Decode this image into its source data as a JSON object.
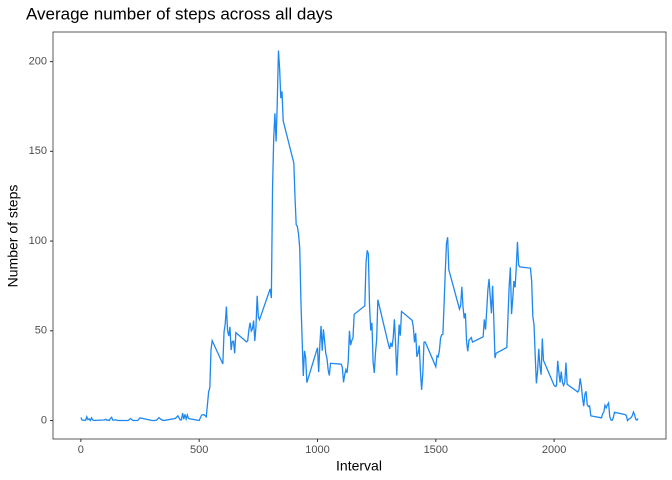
{
  "chart_data": {
    "type": "line",
    "title": "Average number of steps across all days",
    "x_label": "Interval",
    "y_label": "Number of steps",
    "color": "#1e88f0",
    "x": [
      0,
      5,
      10,
      15,
      20,
      25,
      30,
      35,
      40,
      45,
      50,
      55,
      100,
      105,
      110,
      115,
      120,
      125,
      130,
      135,
      140,
      145,
      150,
      155,
      200,
      210,
      220,
      230,
      240,
      250,
      300,
      310,
      320,
      330,
      340,
      350,
      400,
      410,
      420,
      425,
      430,
      435,
      440,
      445,
      450,
      455,
      500,
      510,
      520,
      530,
      540,
      545,
      550,
      555,
      600,
      605,
      610,
      615,
      620,
      625,
      630,
      635,
      640,
      645,
      650,
      655,
      700,
      705,
      710,
      715,
      720,
      725,
      730,
      735,
      740,
      745,
      750,
      755,
      800,
      805,
      810,
      815,
      820,
      825,
      830,
      835,
      840,
      845,
      850,
      855,
      900,
      905,
      910,
      915,
      920,
      925,
      930,
      935,
      940,
      945,
      950,
      955,
      1000,
      1005,
      1010,
      1015,
      1020,
      1025,
      1030,
      1035,
      1040,
      1045,
      1050,
      1055,
      1100,
      1105,
      1110,
      1115,
      1120,
      1125,
      1130,
      1135,
      1140,
      1145,
      1150,
      1155,
      1200,
      1205,
      1210,
      1215,
      1220,
      1225,
      1230,
      1235,
      1240,
      1245,
      1250,
      1255,
      1300,
      1305,
      1310,
      1315,
      1320,
      1325,
      1330,
      1335,
      1340,
      1345,
      1350,
      1355,
      1400,
      1405,
      1410,
      1415,
      1420,
      1425,
      1430,
      1435,
      1440,
      1445,
      1450,
      1455,
      1500,
      1505,
      1510,
      1515,
      1520,
      1525,
      1530,
      1535,
      1540,
      1545,
      1550,
      1555,
      1600,
      1605,
      1610,
      1615,
      1620,
      1625,
      1630,
      1635,
      1640,
      1645,
      1650,
      1655,
      1700,
      1705,
      1710,
      1715,
      1720,
      1725,
      1730,
      1735,
      1740,
      1745,
      1750,
      1755,
      1800,
      1805,
      1810,
      1815,
      1820,
      1825,
      1830,
      1835,
      1840,
      1845,
      1850,
      1855,
      1900,
      1905,
      1910,
      1915,
      1920,
      1925,
      1930,
      1935,
      1940,
      1945,
      1950,
      1955,
      2000,
      2005,
      2010,
      2015,
      2020,
      2025,
      2030,
      2035,
      2040,
      2045,
      2050,
      2055,
      2100,
      2105,
      2110,
      2115,
      2120,
      2125,
      2130,
      2135,
      2140,
      2145,
      2150,
      2155,
      2200,
      2205,
      2210,
      2215,
      2220,
      2225,
      2230,
      2235,
      2240,
      2245,
      2250,
      2255,
      2300,
      2305,
      2310,
      2315,
      2320,
      2325,
      2330,
      2335,
      2340,
      2345,
      2350,
      2355
    ],
    "values": [
      1.7,
      0.3,
      0.1,
      0.2,
      0.1,
      2.1,
      0.5,
      0.9,
      0,
      1.5,
      0.3,
      0.1,
      0.3,
      0.7,
      0.2,
      0.3,
      0,
      1.1,
      1.8,
      0.2,
      0.2,
      0.4,
      0.3,
      0,
      0,
      1.1,
      0,
      0,
      0,
      1.5,
      0,
      0,
      0.2,
      1.6,
      0.5,
      0,
      1.2,
      2.6,
      0.3,
      0.4,
      4.1,
      0.7,
      3.5,
      0.8,
      3.1,
      1.1,
      0,
      3,
      3.3,
      2.1,
      16,
      18.3,
      39.5,
      44.5,
      31.5,
      49.3,
      53.8,
      63.5,
      50,
      47.1,
      52.2,
      39.3,
      44,
      44.2,
      37.4,
      49,
      43.8,
      44.4,
      50.5,
      54.5,
      49.9,
      51,
      55.7,
      44.3,
      52.3,
      69.5,
      57.8,
      56.2,
      73.4,
      68.2,
      129.4,
      157.5,
      171.2,
      155.4,
      177.3,
      206.2,
      195.9,
      179.6,
      183.4,
      167,
      143.5,
      124,
      109.1,
      108.1,
      103.7,
      95.9,
      66.2,
      45.2,
      24.8,
      38.8,
      35,
      21.1,
      40.6,
      27,
      42.4,
      52.7,
      38.9,
      50.8,
      44.3,
      37.4,
      34.7,
      28.3,
      25.1,
      31.9,
      31.4,
      29.7,
      21.3,
      25.5,
      28.4,
      26.5,
      33.4,
      50,
      42,
      44.6,
      46,
      59.2,
      63.9,
      87.7,
      94.8,
      92.8,
      63.4,
      50.2,
      54.5,
      32.4,
      26.5,
      37.7,
      45.1,
      67.3,
      42.3,
      39.9,
      43.3,
      41,
      46.2,
      56.4,
      42.8,
      25.1,
      40,
      53.5,
      47.3,
      60.8,
      55.8,
      52,
      43.6,
      48.7,
      35.5,
      37.5,
      41.8,
      27.5,
      17.1,
      26.1,
      43.6,
      43.8,
      30,
      36.1,
      35.5,
      38.8,
      46,
      47.8,
      48.1,
      65.3,
      82.9,
      98.7,
      102.1,
      84,
      62.1,
      64.1,
      74.5,
      63.2,
      56.9,
      59.8,
      43.9,
      38.6,
      44.7,
      45.5,
      46.2,
      43.7,
      46.6,
      56.3,
      50.7,
      61.2,
      72.7,
      78.9,
      68.9,
      59.7,
      75.1,
      56.5,
      34.8,
      37.5,
      40.7,
      58,
      74.7,
      85.3,
      59.3,
      67.8,
      77.7,
      74.2,
      85.3,
      99.5,
      86.6,
      85.6,
      84.9,
      77.8,
      58,
      53.4,
      36.3,
      20.7,
      27.4,
      40,
      30.2,
      25.5,
      45.7,
      33.5,
      19.6,
      19,
      19.3,
      33.3,
      26.8,
      21.2,
      27.3,
      21.3,
      19.5,
      21.3,
      32.3,
      20.2,
      15.9,
      17.2,
      23.5,
      19.2,
      12.5,
      8,
      14.7,
      16.3,
      8.7,
      7.8,
      8.1,
      2.6,
      1.5,
      3.7,
      4.8,
      8.5,
      7.1,
      8.7,
      9.8,
      2.2,
      0.3,
      0.1,
      1.6,
      4.6,
      3.3,
      2.8,
      0,
      0.8,
      1,
      1.6,
      2.6,
      4.7,
      3.3,
      0.6,
      0.2,
      1.1
    ],
    "xlim": [
      -117.75,
      2472.75
    ],
    "xticks": [
      0,
      500,
      1000,
      1500,
      2000
    ],
    "ylim": [
      -10.3,
      216.5
    ],
    "yticks": [
      0,
      50,
      100,
      150,
      200
    ]
  }
}
